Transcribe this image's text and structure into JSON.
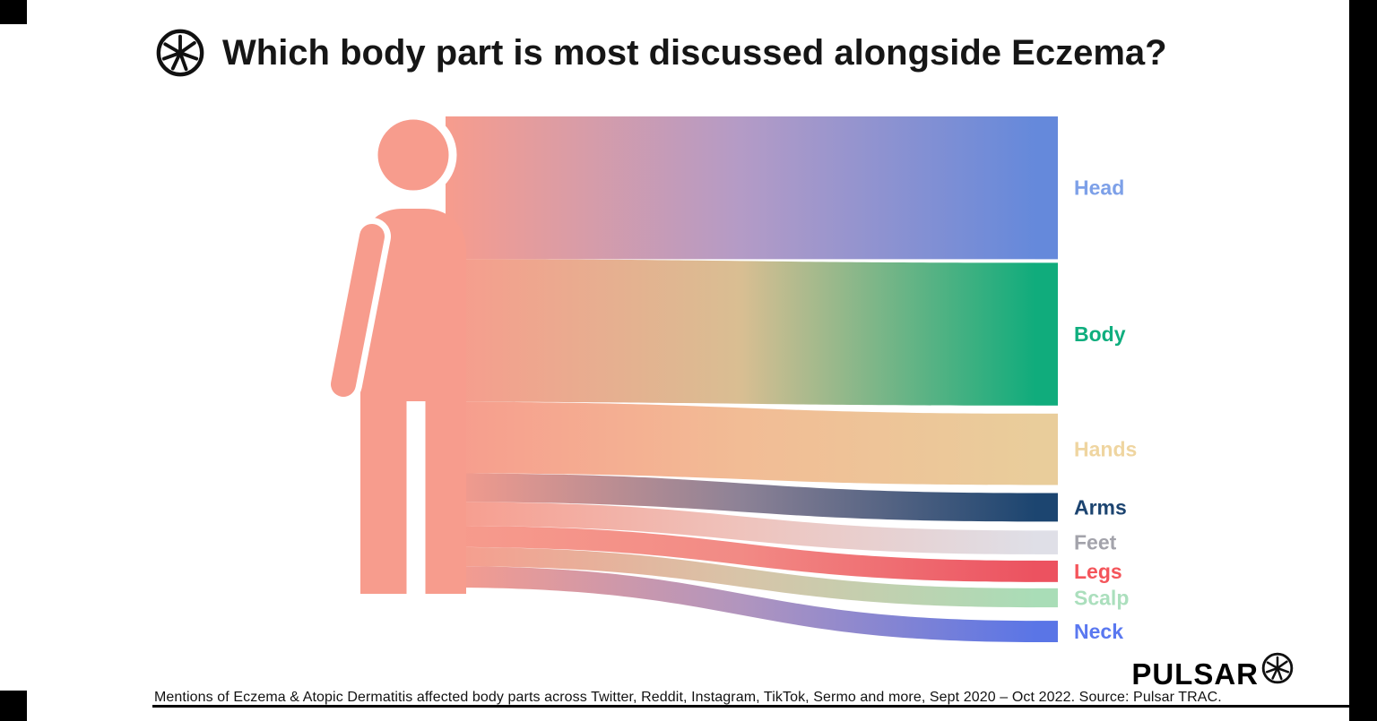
{
  "header": {
    "title": "Which body part is most discussed alongside Eczema?"
  },
  "footer": {
    "caption": "Mentions of Eczema & Atopic Dermatitis affected body parts across Twitter, Reddit, Instagram, TikTok, Sermo and more, Sept 2020 – Oct 2022. Source: Pulsar TRAC.",
    "brand": "PULSAR"
  },
  "chart_data": {
    "type": "sankey",
    "title": "Which body part is most discussed alongside Eczema?",
    "source_node": "Body silhouette (all eczema body-part mentions)",
    "source_color": "#F79C8D",
    "legend_position": "right",
    "grid": false,
    "units": "share of mentions, % (estimated from band heights; no numeric labels shown in chart)",
    "categories": [
      "Head",
      "Body",
      "Hands",
      "Arms",
      "Feet",
      "Legs",
      "Scalp",
      "Neck"
    ],
    "values": [
      30,
      30,
      15,
      6,
      5,
      4.5,
      4,
      4.5
    ],
    "segments": [
      {
        "label": "Head",
        "value_pct": 30,
        "bar_color": "#6589DB",
        "label_color": "#7DA0E8",
        "mid_color": "#B49BC6"
      },
      {
        "label": "Body",
        "value_pct": 30,
        "bar_color": "#10AC7C",
        "label_color": "#0FAE7E",
        "mid_color": "#D9BE92"
      },
      {
        "label": "Hands",
        "value_pct": 15,
        "bar_color": "#E9CD9B",
        "label_color": "#EFD5A0",
        "mid_color": "#F2BC95"
      },
      {
        "label": "Arms",
        "value_pct": 6,
        "bar_color": "#1C4570",
        "label_color": "#1C4470",
        "mid_color": "#8D8296"
      },
      {
        "label": "Feet",
        "value_pct": 5,
        "bar_color": "#DFDFE7",
        "label_color": "#A3A3AB",
        "mid_color": "#EFC3BC"
      },
      {
        "label": "Legs",
        "value_pct": 4.5,
        "bar_color": "#EC5260",
        "label_color": "#F4555B",
        "mid_color": "#F28A85"
      },
      {
        "label": "Scalp",
        "value_pct": 4,
        "bar_color": "#A9DDB7",
        "label_color": "#ABDFBD",
        "mid_color": "#D8C4A8"
      },
      {
        "label": "Neck",
        "value_pct": 4.5,
        "bar_color": "#5A75E6",
        "label_color": "#5A78F0",
        "mid_color": "#B195BE"
      }
    ],
    "source_note": "Mentions of Eczema & Atopic Dermatitis affected body parts across Twitter, Reddit, Instagram, TikTok, Sermo and more, Sept 2020 – Oct 2022. Source: Pulsar TRAC."
  }
}
